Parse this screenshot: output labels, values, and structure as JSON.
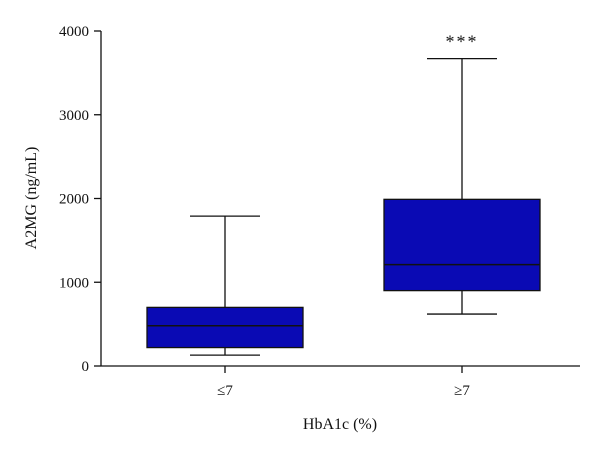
{
  "chart_data": {
    "type": "box",
    "title": "",
    "xlabel": "HbA1c (%)",
    "ylabel": "A2MG (ng/mL)",
    "ylim": [
      0,
      4000
    ],
    "yticks": [
      0,
      1000,
      2000,
      3000,
      4000
    ],
    "categories": [
      "≤7",
      "≥7"
    ],
    "boxes": [
      {
        "category": "≤7",
        "min": 130,
        "q1": 220,
        "median": 480,
        "q3": 700,
        "max": 1790
      },
      {
        "category": "≥7",
        "min": 620,
        "q1": 900,
        "median": 1210,
        "q3": 1990,
        "max": 3670
      }
    ],
    "annotations": [
      {
        "category": "≥7",
        "text": "***"
      }
    ],
    "box_color": "#0a0ab4",
    "grid": false,
    "legend": "none"
  }
}
